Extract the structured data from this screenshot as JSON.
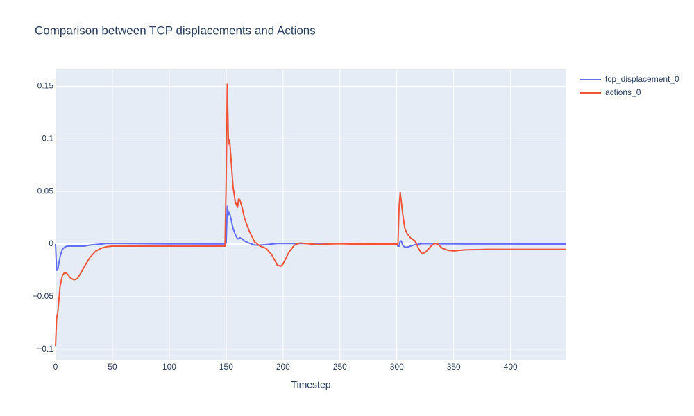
{
  "chart_data": {
    "type": "line",
    "title": "Comparison between TCP displacements and Actions",
    "x_label": "Timestep",
    "x": [
      0,
      1,
      2,
      4,
      6,
      8,
      10,
      13,
      16,
      19,
      22,
      25,
      30,
      35,
      40,
      45,
      50,
      60,
      80,
      100,
      120,
      140,
      149,
      150,
      151,
      152,
      153,
      154,
      156,
      158,
      160,
      161,
      162,
      164,
      166,
      170,
      175,
      180,
      185,
      190,
      195,
      198,
      200,
      205,
      210,
      215,
      220,
      230,
      240,
      250,
      260,
      280,
      300,
      301,
      302,
      303,
      304,
      305,
      307,
      309,
      312,
      316,
      320,
      322,
      325,
      330,
      333,
      336,
      340,
      345,
      350,
      360,
      380,
      400,
      420,
      449
    ],
    "series": [
      {
        "name": "tcp_displacement_0",
        "color": "#636efa",
        "values": [
          0,
          -0.025,
          -0.024,
          -0.012,
          -0.005,
          -0.003,
          -0.002,
          -0.002,
          -0.002,
          -0.002,
          -0.002,
          -0.002,
          -0.001,
          -0.0005,
          0,
          0.0005,
          0.0005,
          0.0005,
          0.0003,
          0.0002,
          0.0002,
          0.0001,
          0.0001,
          0.001,
          0.036,
          0.028,
          0.03,
          0.025,
          0.015,
          0.009,
          0.005,
          0.005,
          0.006,
          0.005,
          0.003,
          0.001,
          -0.001,
          -0.001,
          -0.0005,
          0,
          0.0005,
          0.0005,
          0.0005,
          0.0005,
          0.0005,
          0.0005,
          0.0005,
          0.0003,
          0.0003,
          0.0003,
          0.0002,
          0.0001,
          0,
          -0.002,
          -0.002,
          0.003,
          0.003,
          -0.001,
          -0.003,
          -0.003,
          -0.002,
          -0.0005,
          0,
          0.0003,
          0.0003,
          0.0003,
          0.0003,
          0.0003,
          0.0002,
          0.0002,
          0.0002,
          0.0001,
          0.0001,
          0.0001,
          0,
          0
        ]
      },
      {
        "name": "actions_0",
        "color": "#ef553b",
        "values": [
          -0.097,
          -0.07,
          -0.065,
          -0.04,
          -0.03,
          -0.027,
          -0.028,
          -0.032,
          -0.034,
          -0.033,
          -0.028,
          -0.022,
          -0.013,
          -0.007,
          -0.004,
          -0.0025,
          -0.002,
          -0.002,
          -0.002,
          -0.002,
          -0.002,
          -0.002,
          -0.002,
          0.06,
          0.152,
          0.095,
          0.099,
          0.085,
          0.055,
          0.04,
          0.035,
          0.043,
          0.042,
          0.035,
          0.025,
          0.013,
          0.002,
          -0.002,
          -0.004,
          -0.01,
          -0.02,
          -0.021,
          -0.019,
          -0.008,
          -0.001,
          0.001,
          0.0005,
          -0.0005,
          0,
          0.0003,
          0,
          0,
          0,
          0,
          0.035,
          0.049,
          0.04,
          0.03,
          0.015,
          0.01,
          0.006,
          0.003,
          -0.006,
          -0.009,
          -0.008,
          -0.002,
          0.0005,
          0,
          -0.004,
          -0.006,
          -0.0065,
          -0.0055,
          -0.005,
          -0.005,
          -0.005,
          -0.005
        ]
      }
    ],
    "xlim": [
      0,
      449
    ],
    "ylim": [
      -0.11,
      0.166
    ],
    "xticks": [
      0,
      50,
      100,
      150,
      200,
      250,
      300,
      350,
      400
    ],
    "yticks": [
      {
        "value": -0.1,
        "label": "−0.1"
      },
      {
        "value": -0.05,
        "label": "−0.05"
      },
      0,
      0.05,
      0.1,
      0.15
    ],
    "grid": true,
    "legend": "top-right",
    "background": "#e5ecf6"
  }
}
